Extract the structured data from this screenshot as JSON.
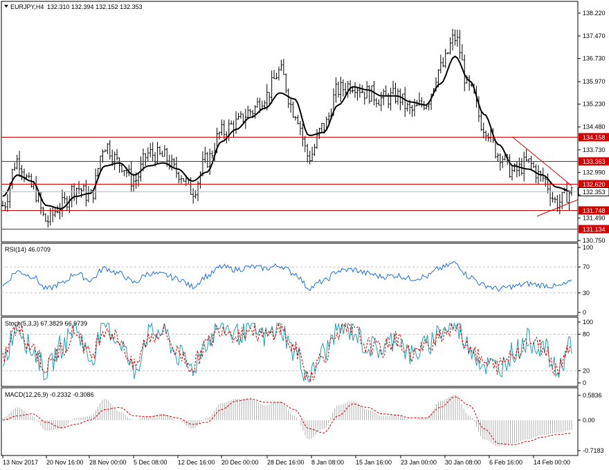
{
  "main": {
    "symbol_header": "EURJPY,H4",
    "ohlc": "132.310 132.394 132.152 132.353",
    "price_ticks": [
      "138.220",
      "137.470",
      "136.730",
      "135.970",
      "135.230",
      "134.480",
      "133.730",
      "132.990",
      "132.250",
      "131.490",
      "130.750"
    ],
    "levels": [
      {
        "label": "134.158",
        "value": 134.158,
        "color": "#d40000"
      },
      {
        "label": "133.363",
        "value": 133.363,
        "color": "#d40000"
      },
      {
        "label": "132.620",
        "value": 132.62,
        "color": "#d40000"
      },
      {
        "label": "131.748",
        "value": 131.748,
        "color": "#d40000"
      },
      {
        "label": "131.134",
        "value": 131.134,
        "color": "#d40000"
      }
    ],
    "current": {
      "label": "132.353",
      "value": 132.353
    }
  },
  "rsi": {
    "header": "RSI(14) 46.0709",
    "ticks": [
      "100",
      "70",
      "30",
      "0"
    ]
  },
  "stoch": {
    "header": "Stoch(5,3,3) 67.3829 66.9739",
    "ticks": [
      "100",
      "80",
      "20",
      "0"
    ]
  },
  "macd": {
    "header": "MACD(12,26,9) -0.2332 -0.3086",
    "ticks": [
      "0.5836",
      "0.00",
      "-0.7183"
    ]
  },
  "time_labels": [
    "13 Nov 2017",
    "20 Nov 16:00",
    "28 Nov 00:00",
    "5 Dec 08:00",
    "12 Dec 16:00",
    "20 Dec 00:00",
    "28 Dec 16:00",
    "8 Jan 08:00",
    "15 Jan 16:00",
    "23 Jan 00:00",
    "30 Jan 08:00",
    "6 Feb 16:00",
    "14 Feb 00:00"
  ],
  "chart_data": {
    "type": "line",
    "title": "EURJPY,H4",
    "x_axis": "time (H4 bars), 13 Nov 2017 - 16 Feb 2018",
    "price_series": [
      {
        "date": "13 Nov 2017",
        "close": 131.9
      },
      {
        "date": "15 Nov",
        "close": 133.4
      },
      {
        "date": "17 Nov",
        "close": 132.5
      },
      {
        "date": "20 Nov 16:00",
        "close": 131.4
      },
      {
        "date": "22 Nov",
        "close": 131.9
      },
      {
        "date": "24 Nov",
        "close": 132.5
      },
      {
        "date": "28 Nov 00:00",
        "close": 132.2
      },
      {
        "date": "30 Nov",
        "close": 133.9
      },
      {
        "date": "1 Dec",
        "close": 133.3
      },
      {
        "date": "5 Dec 08:00",
        "close": 132.7
      },
      {
        "date": "7 Dec",
        "close": 133.6
      },
      {
        "date": "8 Dec",
        "close": 133.5
      },
      {
        "date": "12 Dec 16:00",
        "close": 133.0
      },
      {
        "date": "14 Dec",
        "close": 132.4
      },
      {
        "date": "18 Dec",
        "close": 133.4
      },
      {
        "date": "20 Dec 00:00",
        "close": 134.3
      },
      {
        "date": "22 Dec",
        "close": 134.6
      },
      {
        "date": "26 Dec",
        "close": 135.0
      },
      {
        "date": "28 Dec 16:00",
        "close": 135.5
      },
      {
        "date": "2 Jan",
        "close": 136.3
      },
      {
        "date": "4 Jan",
        "close": 135.0
      },
      {
        "date": "8 Jan 08:00",
        "close": 133.5
      },
      {
        "date": "10 Jan",
        "close": 134.5
      },
      {
        "date": "12 Jan",
        "close": 135.7
      },
      {
        "date": "15 Jan 16:00",
        "close": 135.9
      },
      {
        "date": "17 Jan",
        "close": 135.6
      },
      {
        "date": "19 Jan",
        "close": 135.4
      },
      {
        "date": "23 Jan 00:00",
        "close": 135.5
      },
      {
        "date": "25 Jan",
        "close": 135.0
      },
      {
        "date": "29 Jan",
        "close": 135.3
      },
      {
        "date": "30 Jan 08:00",
        "close": 136.4
      },
      {
        "date": "1 Feb",
        "close": 137.4
      },
      {
        "date": "2 Feb",
        "close": 135.7
      },
      {
        "date": "6 Feb 16:00",
        "close": 134.5
      },
      {
        "date": "8 Feb",
        "close": 133.6
      },
      {
        "date": "9 Feb",
        "close": 133.0
      },
      {
        "date": "12 Feb",
        "close": 133.3
      },
      {
        "date": "14 Feb 00:00",
        "close": 132.8
      },
      {
        "date": "15 Feb",
        "close": 132.0
      },
      {
        "date": "16 Feb",
        "close": 132.35
      }
    ],
    "moving_average_series": [
      132.2,
      132.9,
      132.7,
      131.9,
      131.8,
      132.2,
      132.3,
      133.2,
      133.3,
      132.9,
      133.2,
      133.3,
      133.1,
      132.7,
      133.0,
      134.0,
      134.4,
      134.8,
      135.1,
      135.6,
      135.4,
      134.2,
      134.3,
      135.2,
      135.8,
      135.7,
      135.5,
      135.5,
      135.3,
      135.2,
      135.9,
      136.8,
      136.0,
      134.9,
      133.9,
      133.2,
      133.1,
      132.9,
      132.5,
      132.35
    ],
    "rsi_series": [
      42,
      63,
      56,
      36,
      44,
      60,
      50,
      68,
      60,
      46,
      60,
      58,
      52,
      40,
      56,
      70,
      66,
      70,
      68,
      72,
      60,
      38,
      48,
      64,
      66,
      60,
      55,
      57,
      52,
      55,
      68,
      76,
      55,
      42,
      36,
      40,
      44,
      42,
      40,
      46
    ],
    "rsi_ylim": [
      0,
      100
    ],
    "stoch_series": {
      "k": [
        40,
        95,
        55,
        20,
        60,
        90,
        40,
        95,
        70,
        20,
        80,
        85,
        45,
        25,
        70,
        95,
        80,
        90,
        75,
        92,
        50,
        10,
        50,
        90,
        85,
        60,
        55,
        75,
        45,
        60,
        85,
        95,
        60,
        30,
        25,
        50,
        70,
        60,
        20,
        67
      ],
      "d": [
        45,
        90,
        60,
        25,
        55,
        85,
        45,
        90,
        72,
        25,
        75,
        85,
        50,
        28,
        65,
        92,
        80,
        88,
        76,
        90,
        55,
        12,
        45,
        85,
        85,
        62,
        55,
        72,
        48,
        58,
        82,
        92,
        62,
        32,
        28,
        48,
        68,
        60,
        25,
        67
      ]
    },
    "stoch_ylim": [
      0,
      100
    ],
    "macd_series": {
      "histogram": [
        0.05,
        0.3,
        0.1,
        -0.25,
        -0.2,
        0.05,
        0.1,
        0.5,
        0.2,
        0.0,
        0.1,
        0.15,
        0.0,
        -0.2,
        0.05,
        0.4,
        0.5,
        0.5,
        0.35,
        0.45,
        0.1,
        -0.45,
        -0.2,
        0.35,
        0.45,
        0.25,
        0.1,
        0.12,
        0.0,
        0.05,
        0.45,
        0.6,
        0.1,
        -0.45,
        -0.62,
        -0.55,
        -0.45,
        -0.35,
        -0.3,
        -0.23
      ],
      "signal": [
        0.0,
        0.1,
        0.15,
        -0.05,
        -0.18,
        -0.1,
        0.0,
        0.25,
        0.3,
        0.1,
        0.08,
        0.12,
        0.05,
        -0.1,
        -0.05,
        0.25,
        0.45,
        0.5,
        0.42,
        0.42,
        0.25,
        -0.2,
        -0.3,
        0.1,
        0.38,
        0.3,
        0.15,
        0.12,
        0.05,
        0.05,
        0.3,
        0.55,
        0.35,
        -0.2,
        -0.55,
        -0.58,
        -0.5,
        -0.4,
        -0.34,
        -0.31
      ]
    },
    "macd_ylim": [
      -0.7183,
      0.5836
    ]
  }
}
